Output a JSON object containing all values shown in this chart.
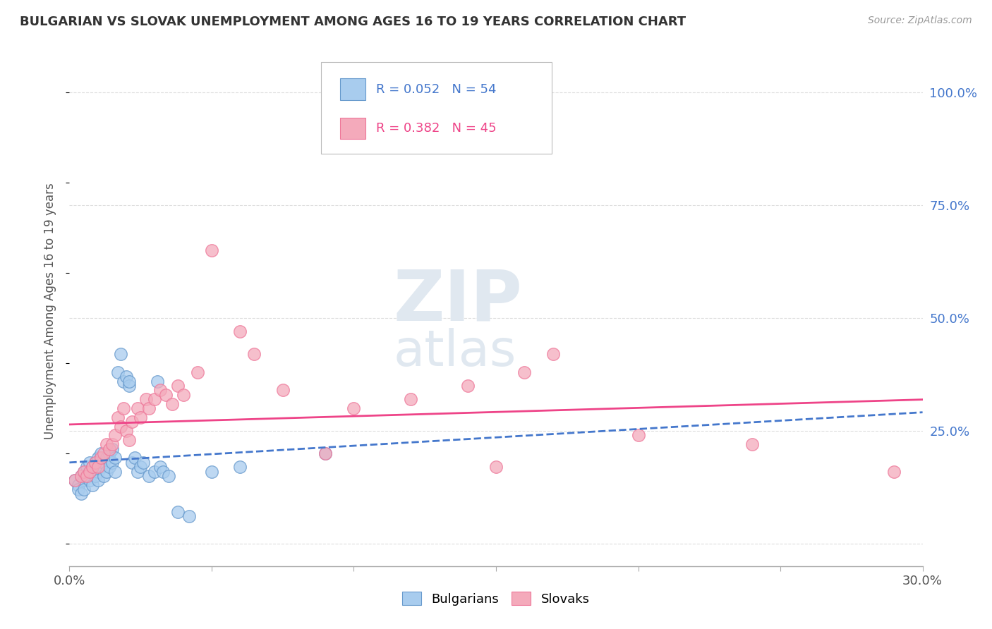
{
  "title": "BULGARIAN VS SLOVAK UNEMPLOYMENT AMONG AGES 16 TO 19 YEARS CORRELATION CHART",
  "source": "Source: ZipAtlas.com",
  "ylabel": "Unemployment Among Ages 16 to 19 years",
  "xlim": [
    0.0,
    0.3
  ],
  "ylim": [
    -0.05,
    1.08
  ],
  "xticks": [
    0.0,
    0.05,
    0.1,
    0.15,
    0.2,
    0.25,
    0.3
  ],
  "xticklabels": [
    "0.0%",
    "",
    "",
    "",
    "",
    "",
    "30.0%"
  ],
  "yticks_right": [
    0.0,
    0.25,
    0.5,
    0.75,
    1.0
  ],
  "ytick_right_labels": [
    "",
    "25.0%",
    "50.0%",
    "75.0%",
    "100.0%"
  ],
  "bulgarian_R": 0.052,
  "bulgarian_N": 54,
  "slovak_R": 0.382,
  "slovak_N": 45,
  "bulgarian_color": "#A8CCEE",
  "slovak_color": "#F4AABB",
  "bulgarian_edge_color": "#6699CC",
  "slovak_edge_color": "#EE7799",
  "bulgarian_line_color": "#4477CC",
  "slovak_line_color": "#EE4488",
  "bg_color": "#FFFFFF",
  "grid_color": "#DDDDDD",
  "bulgarians_x": [
    0.002,
    0.003,
    0.003,
    0.004,
    0.004,
    0.005,
    0.005,
    0.005,
    0.006,
    0.006,
    0.007,
    0.007,
    0.008,
    0.008,
    0.008,
    0.009,
    0.009,
    0.01,
    0.01,
    0.01,
    0.011,
    0.011,
    0.012,
    0.012,
    0.013,
    0.013,
    0.014,
    0.014,
    0.015,
    0.015,
    0.016,
    0.016,
    0.017,
    0.018,
    0.019,
    0.02,
    0.021,
    0.021,
    0.022,
    0.023,
    0.024,
    0.025,
    0.026,
    0.028,
    0.03,
    0.031,
    0.032,
    0.033,
    0.035,
    0.038,
    0.042,
    0.05,
    0.06,
    0.09
  ],
  "bulgarians_y": [
    0.14,
    0.13,
    0.12,
    0.15,
    0.11,
    0.16,
    0.14,
    0.12,
    0.17,
    0.15,
    0.18,
    0.14,
    0.17,
    0.16,
    0.13,
    0.18,
    0.15,
    0.19,
    0.16,
    0.14,
    0.2,
    0.17,
    0.18,
    0.15,
    0.19,
    0.16,
    0.2,
    0.17,
    0.21,
    0.18,
    0.19,
    0.16,
    0.38,
    0.42,
    0.36,
    0.37,
    0.35,
    0.36,
    0.18,
    0.19,
    0.16,
    0.17,
    0.18,
    0.15,
    0.16,
    0.36,
    0.17,
    0.16,
    0.15,
    0.07,
    0.06,
    0.16,
    0.17,
    0.2
  ],
  "slovaks_x": [
    0.002,
    0.004,
    0.005,
    0.006,
    0.007,
    0.008,
    0.009,
    0.01,
    0.011,
    0.012,
    0.013,
    0.014,
    0.015,
    0.016,
    0.017,
    0.018,
    0.019,
    0.02,
    0.021,
    0.022,
    0.024,
    0.025,
    0.027,
    0.028,
    0.03,
    0.032,
    0.034,
    0.036,
    0.038,
    0.04,
    0.045,
    0.05,
    0.06,
    0.065,
    0.075,
    0.09,
    0.1,
    0.12,
    0.14,
    0.15,
    0.16,
    0.17,
    0.2,
    0.24,
    0.29
  ],
  "slovaks_y": [
    0.14,
    0.15,
    0.16,
    0.15,
    0.16,
    0.17,
    0.18,
    0.17,
    0.19,
    0.2,
    0.22,
    0.21,
    0.22,
    0.24,
    0.28,
    0.26,
    0.3,
    0.25,
    0.23,
    0.27,
    0.3,
    0.28,
    0.32,
    0.3,
    0.32,
    0.34,
    0.33,
    0.31,
    0.35,
    0.33,
    0.38,
    0.65,
    0.47,
    0.42,
    0.34,
    0.2,
    0.3,
    0.32,
    0.35,
    0.17,
    0.38,
    0.42,
    0.24,
    0.22,
    0.16
  ]
}
